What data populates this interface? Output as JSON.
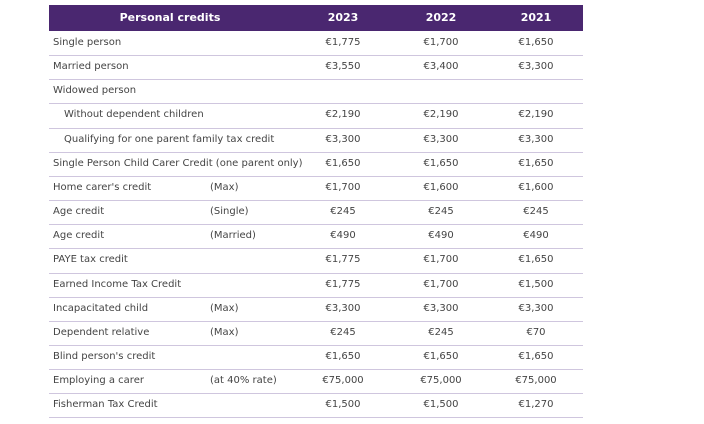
{
  "table": {
    "header": [
      "Personal credits",
      "2023",
      "2022",
      "2021"
    ],
    "rows": [
      {
        "label": "Single person",
        "values": [
          "€1,775",
          "€1,700",
          "€1,650"
        ]
      },
      {
        "label": "Married person",
        "values": [
          "€3,550",
          "€3,400",
          "€3,300"
        ]
      },
      {
        "label": "Widowed person",
        "children": [
          {
            "label": "Without dependent children",
            "values": [
              "€2,190",
              "€2,190",
              "€2,190"
            ]
          },
          {
            "label": "Qualifying for one parent family tax credit",
            "values": [
              "€3,300",
              "€3,300",
              "€3,300"
            ]
          }
        ]
      },
      {
        "label": "Single Person Child Carer Credit (one parent only)",
        "values": [
          "€1,650",
          "€1,650",
          "€1,650"
        ]
      },
      {
        "label": "Home carer's credit",
        "note": "(Max)",
        "values": [
          "€1,700",
          "€1,600",
          "€1,600"
        ]
      },
      {
        "label": "Age credit",
        "note": "(Single)",
        "values": [
          "€245",
          "€245",
          "€245"
        ]
      },
      {
        "label": "Age credit",
        "note": "(Married)",
        "values": [
          "€490",
          "€490",
          "€490"
        ]
      },
      {
        "label": "PAYE tax credit",
        "values": [
          "€1,775",
          "€1,700",
          "€1,650"
        ]
      },
      {
        "label": "Earned Income Tax Credit",
        "values": [
          "€1,775",
          "€1,700",
          "€1,500"
        ]
      },
      {
        "label": "Incapacitated child",
        "note": "(Max)",
        "values": [
          "€3,300",
          "€3,300",
          "€3,300"
        ]
      },
      {
        "label": "Dependent relative",
        "note": "(Max)",
        "values": [
          "€245",
          "€245",
          "€70"
        ]
      },
      {
        "label": "Blind person's credit",
        "values": [
          "€1,650",
          "€1,650",
          "€1,650"
        ]
      },
      {
        "label": "Employing a carer",
        "note": "(at 40% rate)",
        "values": [
          "€75,000",
          "€75,000",
          "€75,000"
        ]
      },
      {
        "label": "Fisherman Tax Credit",
        "values": [
          "€1,500",
          "€1,500",
          "€1,270"
        ]
      }
    ]
  }
}
